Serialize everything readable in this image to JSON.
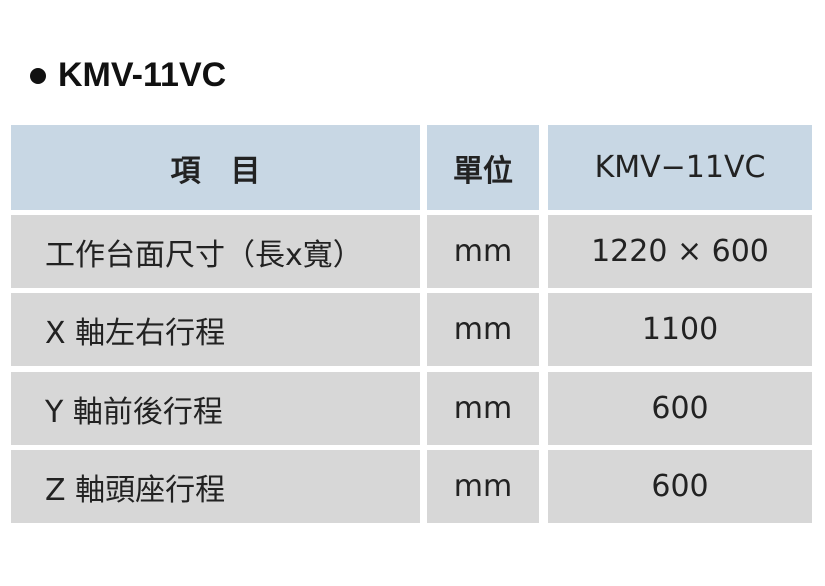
{
  "title": "KMV-11VC",
  "table": {
    "headers": [
      "項　目",
      "單位",
      "KMV−11VC"
    ],
    "rows": [
      [
        "工作台面尺寸（長x寬）",
        "mm",
        "1220 × 600"
      ],
      [
        "X 軸左右行程",
        "mm",
        "1100"
      ],
      [
        "Y 軸前後行程",
        "mm",
        "600"
      ],
      [
        "Z 軸頭座行程",
        "mm",
        "600"
      ]
    ]
  },
  "colors": {
    "header_bg": "#c8d7e4",
    "row_bg": "#d7d7d7"
  }
}
